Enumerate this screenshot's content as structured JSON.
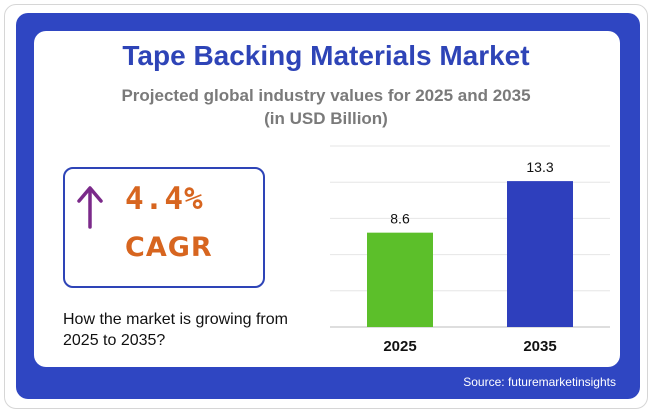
{
  "header": {
    "title": "Tape Backing Materials Market",
    "subtitle_line1": "Projected global industry values for 2025 and 2035",
    "subtitle_line2": "(in USD Billion)"
  },
  "cagr": {
    "value": "4.4%",
    "label": "CAGR",
    "arrow_icon": "up-arrow-icon",
    "description": "How the market is growing from 2025 to 2035?"
  },
  "colors": {
    "background_blue": "#2f46c2",
    "title_blue": "#2e44b7",
    "accent_orange": "#d7651f",
    "arrow_purple": "#7b2a8a",
    "bar_2025": "#5cbf2a",
    "bar_2035": "#2e3fbd"
  },
  "chart_data": {
    "type": "bar",
    "categories": [
      "2025",
      "2035"
    ],
    "values": [
      8.6,
      13.3
    ],
    "data_labels": [
      "8.6",
      "13.3"
    ],
    "bar_colors": [
      "#5cbf2a",
      "#2e3fbd"
    ],
    "ylim": [
      0,
      16.5
    ],
    "grid": true
  },
  "footer": {
    "source": "Source: futuremarketinsights"
  }
}
